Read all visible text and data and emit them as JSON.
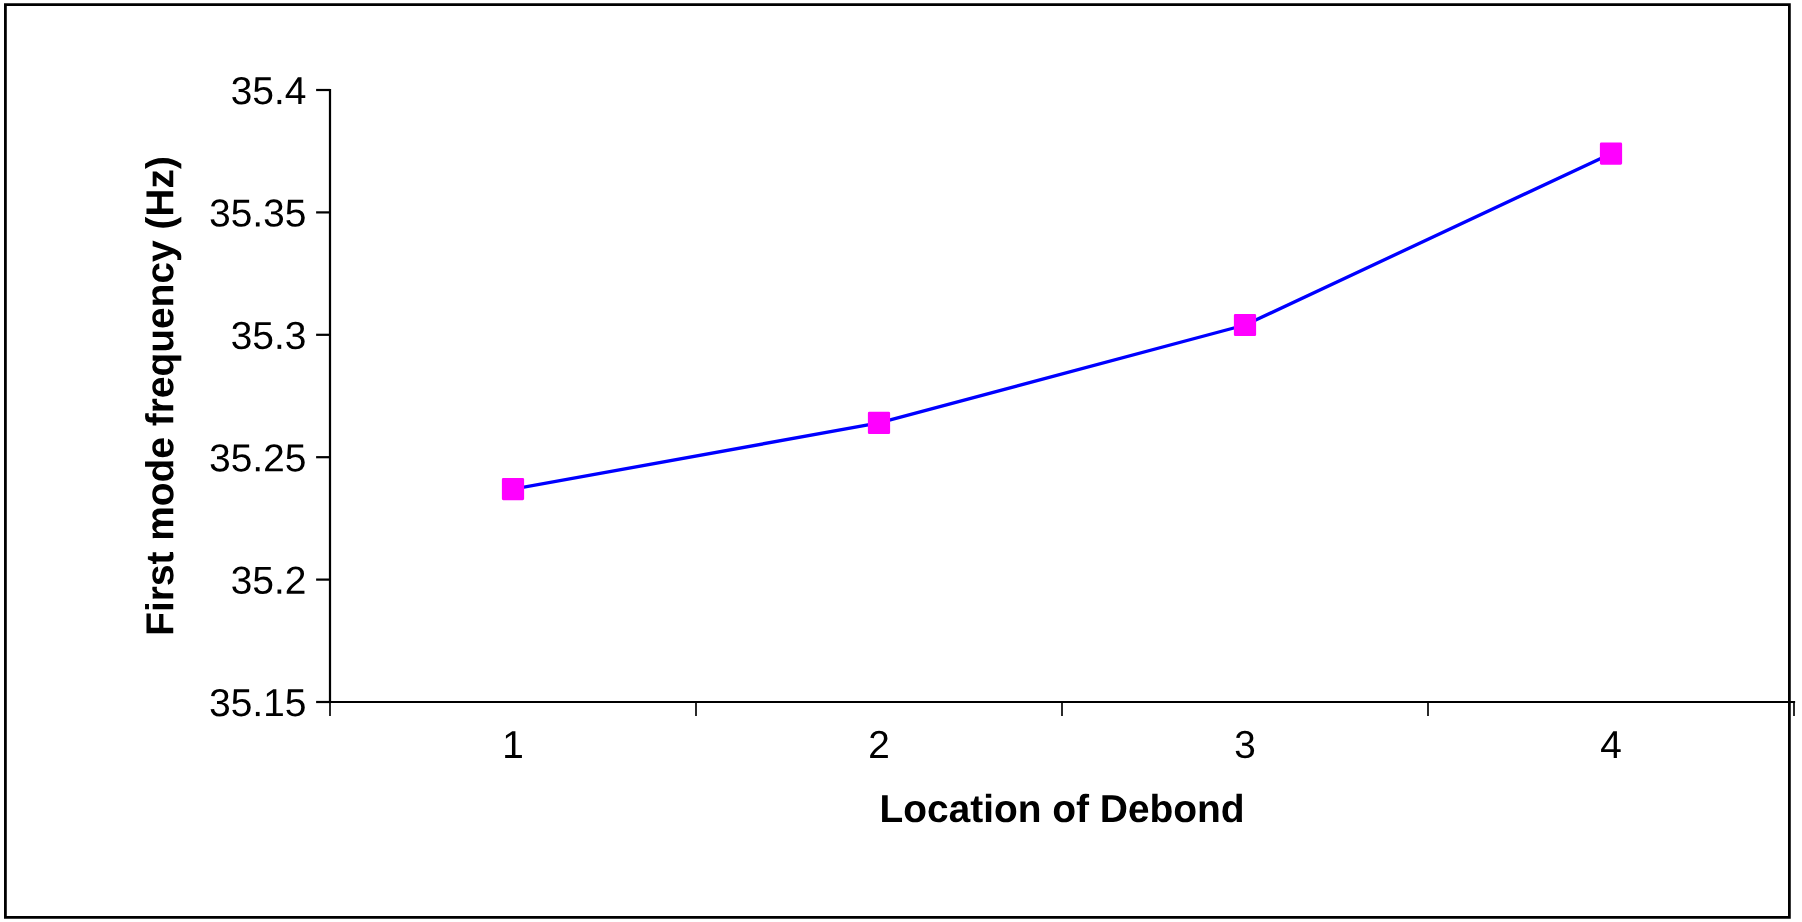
{
  "chart_data": {
    "type": "line",
    "xlabel": "Location of Debond",
    "ylabel": "First mode frequency (Hz)",
    "categories": [
      "1",
      "2",
      "3",
      "4"
    ],
    "series": [
      {
        "color": "#0000ff",
        "colors": [
          "#ff00ff",
          "#ff00ff",
          "#ff00ff",
          "#ff00ff"
        ],
        "values": [
          35.237,
          35.264,
          35.304,
          35.374
        ]
      }
    ],
    "ylim": [
      35.15,
      35.4
    ],
    "yticks": [
      35.15,
      35.2,
      35.25,
      35.3,
      35.35,
      35.4
    ],
    "grid": false,
    "legend": false,
    "marker": "square",
    "line_style": "solid"
  }
}
